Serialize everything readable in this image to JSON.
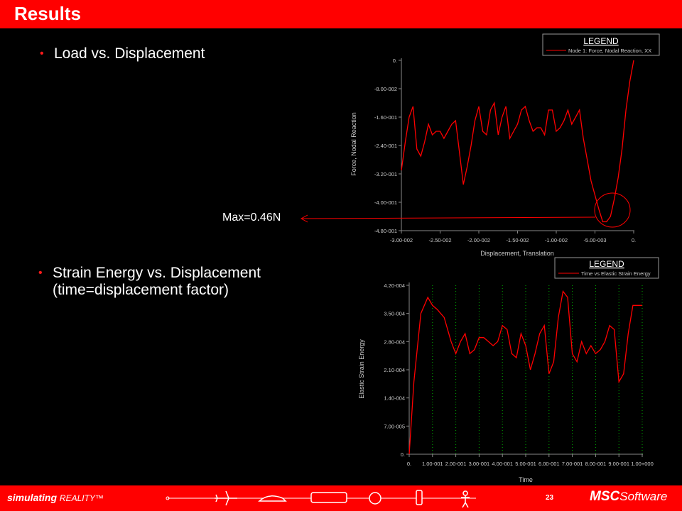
{
  "header": {
    "title": "Results"
  },
  "bullets": {
    "b1": "Load vs. Displacement",
    "b2_line1": "Strain Energy vs. Displacement",
    "b2_line2": "(time=displacement factor)"
  },
  "annotation": {
    "max_label": "Max=0.46N"
  },
  "footer": {
    "left_brand": "simulating",
    "left_brand_sub": "REALITY™",
    "page_number": "23",
    "right_brand": "MSC",
    "right_brand_sub": "Software"
  },
  "colors": {
    "accent": "#ff0000",
    "series": "#ff0000",
    "grid": "#00aa00"
  },
  "chart_data": [
    {
      "type": "line",
      "xlabel": "Displacement, Translation",
      "ylabel": "Force, Nodal Reaction",
      "xlim": [
        -0.03,
        0
      ],
      "ylim": [
        -0.48,
        0
      ],
      "x_ticks": [
        -0.03,
        -0.025,
        -0.02,
        -0.015,
        -0.01,
        -0.005,
        0
      ],
      "x_tick_labels": [
        "-3.00-002",
        "-2.50-002",
        "-2.00-002",
        "-1.50-002",
        "-1.00-002",
        "-5.00-003",
        "0."
      ],
      "y_ticks": [
        0,
        -0.08,
        -0.16,
        -0.24,
        -0.32,
        -0.4,
        -0.48
      ],
      "y_tick_labels": [
        "0.",
        "-8.00-002",
        "-1.60-001",
        "-2.40-001",
        "-3.20-001",
        "-4.00-001",
        "-4.80-001"
      ],
      "legend": {
        "title": "LEGEND",
        "entry": "Node 1: Force, Nodal Reaction, XX",
        "placement": "top-right"
      },
      "series": [
        {
          "x": [
            -0.03,
            -0.0295,
            -0.029,
            -0.0285,
            -0.028,
            -0.0275,
            -0.027,
            -0.0265,
            -0.026,
            -0.0255,
            -0.025,
            -0.0245,
            -0.024,
            -0.0235,
            -0.023,
            -0.0225,
            -0.022,
            -0.0215,
            -0.021,
            -0.0205,
            -0.02,
            -0.0195,
            -0.019,
            -0.0185,
            -0.018,
            -0.0175,
            -0.017,
            -0.0165,
            -0.016,
            -0.0155,
            -0.015,
            -0.0145,
            -0.014,
            -0.0135,
            -0.013,
            -0.0125,
            -0.012,
            -0.0115,
            -0.011,
            -0.0105,
            -0.01,
            -0.0095,
            -0.009,
            -0.0085,
            -0.008,
            -0.0075,
            -0.007,
            -0.0065,
            -0.006,
            -0.0055,
            -0.005,
            -0.0045,
            -0.004,
            -0.0035,
            -0.003,
            -0.0025,
            -0.002,
            -0.0015,
            -0.001,
            -0.0005,
            0.0
          ],
          "y": [
            -0.31,
            -0.23,
            -0.16,
            -0.13,
            -0.25,
            -0.27,
            -0.23,
            -0.18,
            -0.21,
            -0.2,
            -0.2,
            -0.22,
            -0.2,
            -0.18,
            -0.17,
            -0.26,
            -0.35,
            -0.3,
            -0.24,
            -0.17,
            -0.13,
            -0.2,
            -0.21,
            -0.14,
            -0.12,
            -0.21,
            -0.16,
            -0.13,
            -0.22,
            -0.2,
            -0.18,
            -0.14,
            -0.13,
            -0.17,
            -0.2,
            -0.19,
            -0.19,
            -0.21,
            -0.14,
            -0.14,
            -0.2,
            -0.19,
            -0.17,
            -0.14,
            -0.18,
            -0.16,
            -0.14,
            -0.22,
            -0.28,
            -0.34,
            -0.38,
            -0.42,
            -0.455,
            -0.455,
            -0.44,
            -0.39,
            -0.33,
            -0.25,
            -0.14,
            -0.06,
            0.0
          ]
        }
      ]
    },
    {
      "type": "line",
      "xlabel": "Time",
      "ylabel": "Elastic Strain Energy",
      "xlim": [
        0,
        1
      ],
      "ylim": [
        0,
        0.00042
      ],
      "grid": "vertical dotted",
      "x_ticks": [
        0,
        0.1,
        0.2,
        0.3,
        0.4,
        0.5,
        0.6,
        0.7,
        0.8,
        0.9,
        1.0
      ],
      "x_tick_labels": [
        "0.",
        "1.00-001",
        "2.00-001",
        "3.00-001",
        "4.00-001",
        "5.00-001",
        "6.00-001",
        "7.00-001",
        "8.00-001",
        "9.00-001",
        "1.00+000"
      ],
      "y_ticks": [
        0,
        7e-05,
        0.00014,
        0.00021,
        0.00028,
        0.00035,
        0.00042
      ],
      "y_tick_labels": [
        "0.",
        "7.00-005",
        "1.40-004",
        "2.10-004",
        "2.80-004",
        "3.50-004",
        "4.20-004"
      ],
      "legend": {
        "title": "LEGEND",
        "entry": "Time vs Elastic Strain Energy",
        "placement": "top-right"
      },
      "series": [
        {
          "x": [
            0.0,
            0.02,
            0.05,
            0.08,
            0.1,
            0.12,
            0.15,
            0.18,
            0.2,
            0.22,
            0.24,
            0.26,
            0.28,
            0.3,
            0.32,
            0.34,
            0.36,
            0.38,
            0.4,
            0.42,
            0.44,
            0.46,
            0.48,
            0.5,
            0.52,
            0.54,
            0.56,
            0.58,
            0.6,
            0.62,
            0.64,
            0.66,
            0.68,
            0.7,
            0.72,
            0.74,
            0.76,
            0.78,
            0.8,
            0.82,
            0.84,
            0.86,
            0.88,
            0.9,
            0.92,
            0.94,
            0.96,
            0.98,
            1.0
          ],
          "y": [
            0.0,
            0.00018,
            0.00035,
            0.00039,
            0.00037,
            0.00036,
            0.00034,
            0.00028,
            0.00025,
            0.00028,
            0.0003,
            0.00025,
            0.00026,
            0.00029,
            0.00029,
            0.00028,
            0.00027,
            0.00028,
            0.00032,
            0.00031,
            0.00025,
            0.00024,
            0.0003,
            0.00027,
            0.00021,
            0.00025,
            0.0003,
            0.00032,
            0.0002,
            0.00023,
            0.00034,
            0.000405,
            0.00039,
            0.00025,
            0.00023,
            0.00028,
            0.00025,
            0.00027,
            0.00025,
            0.00026,
            0.00028,
            0.00032,
            0.00031,
            0.00018,
            0.0002,
            0.0003,
            0.00037,
            0.00037,
            0.00037
          ]
        }
      ]
    }
  ]
}
